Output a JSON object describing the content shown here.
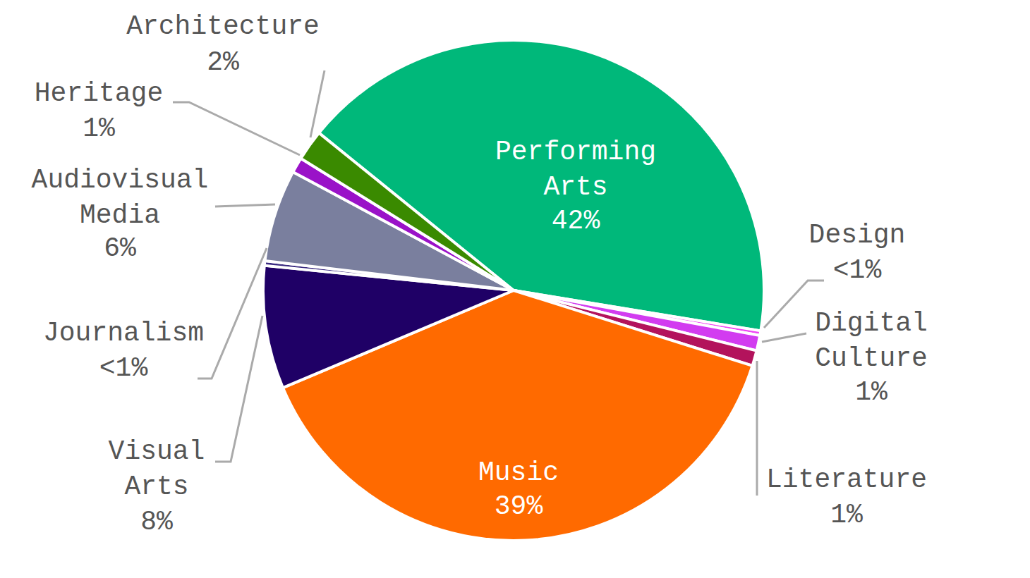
{
  "chart_data": {
    "type": "pie",
    "categories": [
      "Performing Arts",
      "Design",
      "Digital Culture",
      "Literature",
      "Music",
      "Visual Arts",
      "Journalism",
      "Audiovisual Media",
      "Heritage",
      "Architecture"
    ],
    "values": [
      42,
      0.3,
      1,
      1,
      39,
      8,
      0.3,
      6,
      1,
      2
    ],
    "value_labels": [
      "42%",
      "<1%",
      "1%",
      "1%",
      "39%",
      "8%",
      "<1%",
      "6%",
      "1%",
      "2%"
    ],
    "colors": [
      "#00b87a",
      "#f044f5",
      "#d23cf0",
      "#b3135c",
      "#ff6a00",
      "#1f0066",
      "#3a2a80",
      "#7a7f9e",
      "#9a12c8",
      "#3a8a00"
    ],
    "data_labels": true
  }
}
